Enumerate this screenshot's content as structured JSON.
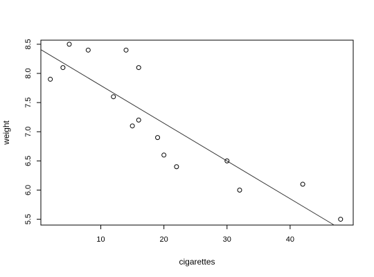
{
  "chart_data": {
    "type": "scatter",
    "title": "",
    "xlabel": "cigarettes",
    "ylabel": "weight",
    "xlim": [
      0.5,
      50
    ],
    "ylim": [
      5.4,
      8.57
    ],
    "xticks": [
      10,
      20,
      30,
      40
    ],
    "xtick_labels": [
      "10",
      "20",
      "30",
      "40"
    ],
    "yticks": [
      5.5,
      6.0,
      6.5,
      7.0,
      7.5,
      8.0,
      8.5
    ],
    "ytick_labels": [
      "5.5",
      "6.0",
      "6.5",
      "7.0",
      "7.5",
      "8.0",
      "8.5"
    ],
    "grid": false,
    "marker": "open-circle",
    "series": [
      {
        "x": [
          2,
          4,
          5,
          8,
          12,
          14,
          15,
          16,
          16,
          19,
          20,
          22,
          30,
          32,
          42,
          48
        ],
        "y": [
          7.9,
          8.1,
          8.5,
          8.4,
          7.6,
          8.4,
          7.1,
          8.1,
          7.2,
          6.9,
          6.6,
          6.4,
          6.5,
          6.0,
          6.1,
          5.5
        ]
      }
    ],
    "fit_line": {
      "type": "linear-regression",
      "color": "#333333"
    },
    "colors": {
      "points": "#000000",
      "axes": "#000000"
    }
  }
}
